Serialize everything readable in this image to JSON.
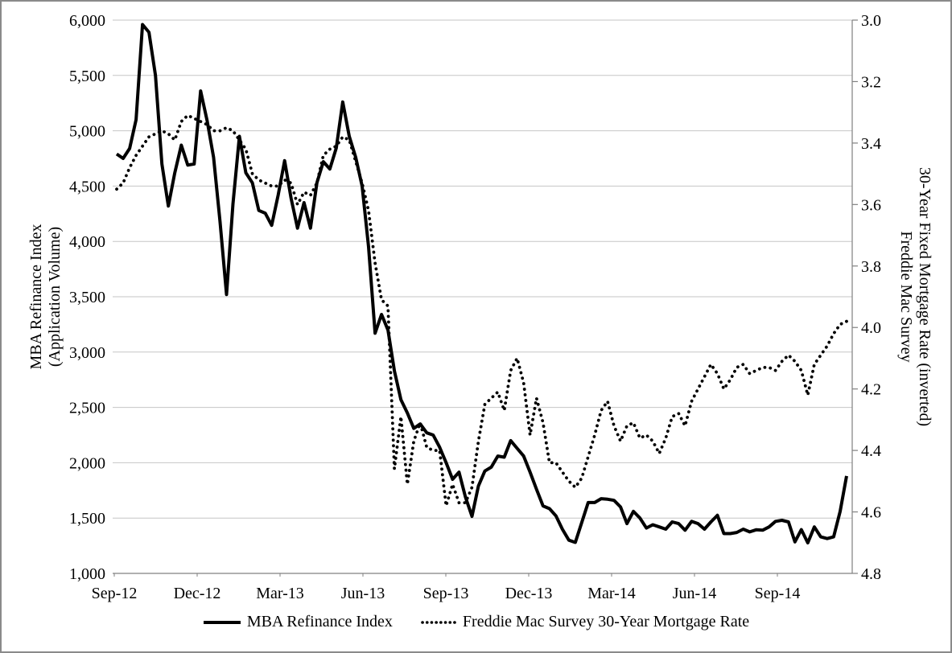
{
  "chart_data": {
    "type": "line",
    "title": "",
    "left_axis": {
      "title_lines": [
        "MBA Refinance Index",
        "(Application Volume)"
      ],
      "tick_labels": [
        "6,000",
        "5,500",
        "5,000",
        "4,500",
        "4,000",
        "3,500",
        "3,000",
        "2,500",
        "2,000",
        "1,500",
        "1,000"
      ],
      "min": 1000,
      "max": 6000,
      "step": 500
    },
    "right_axis": {
      "title_lines": [
        "Freddie Mac Survey",
        "30-Year Fixed Mortgage Rate (inverted)"
      ],
      "tick_labels": [
        "3.0",
        "3.2",
        "3.4",
        "3.6",
        "3.8",
        "4.0",
        "4.2",
        "4.4",
        "4.6",
        "4.8"
      ],
      "min": 3.0,
      "max": 4.8,
      "step": 0.2,
      "inverted": true
    },
    "x_axis": {
      "tick_labels": [
        "Sep-12",
        "Dec-12",
        "Mar-13",
        "Jun-13",
        "Sep-13",
        "Dec-13",
        "Mar-14",
        "Jun-14",
        "Sep-14"
      ],
      "unit": "weekly observations"
    },
    "grid": true,
    "legend_position": "bottom",
    "colors": {
      "series": "#000000",
      "gridline": "#c6c6c6",
      "axisline": "#808080",
      "text": "#000000"
    },
    "series": [
      {
        "name": "MBA Refinance Index",
        "axis": "left",
        "style": "solid",
        "values": [
          4790,
          4750,
          4840,
          5100,
          5960,
          5890,
          5500,
          4700,
          4320,
          4620,
          4870,
          4690,
          4700,
          5360,
          5090,
          4760,
          4180,
          3520,
          4340,
          4950,
          4620,
          4530,
          4280,
          4255,
          4145,
          4420,
          4730,
          4390,
          4120,
          4350,
          4120,
          4530,
          4720,
          4655,
          4845,
          5260,
          4950,
          4760,
          4500,
          3950,
          3170,
          3340,
          3200,
          2830,
          2570,
          2450,
          2310,
          2350,
          2270,
          2250,
          2140,
          2000,
          1850,
          1915,
          1690,
          1515,
          1790,
          1925,
          1960,
          2060,
          2050,
          2200,
          2130,
          2060,
          1915,
          1760,
          1610,
          1585,
          1520,
          1400,
          1300,
          1280,
          1460,
          1640,
          1640,
          1675,
          1670,
          1660,
          1600,
          1450,
          1560,
          1500,
          1410,
          1440,
          1420,
          1400,
          1465,
          1450,
          1390,
          1470,
          1450,
          1400,
          1465,
          1525,
          1360,
          1360,
          1370,
          1400,
          1375,
          1394,
          1390,
          1420,
          1470,
          1480,
          1465,
          1285,
          1395,
          1276,
          1420,
          1330,
          1315,
          1330,
          1560,
          1880
        ]
      },
      {
        "name": "Freddie Mac Survey 30-Year Mortgage Rate",
        "axis": "right",
        "style": "dotted",
        "values": [
          3.55,
          3.53,
          3.48,
          3.44,
          3.41,
          3.38,
          3.37,
          3.36,
          3.37,
          3.39,
          3.33,
          3.31,
          3.32,
          3.33,
          3.34,
          3.36,
          3.36,
          3.35,
          3.36,
          3.39,
          3.42,
          3.5,
          3.52,
          3.53,
          3.54,
          3.54,
          3.52,
          3.53,
          3.6,
          3.56,
          3.57,
          3.53,
          3.44,
          3.42,
          3.41,
          3.38,
          3.39,
          3.46,
          3.53,
          3.62,
          3.79,
          3.91,
          3.93,
          4.46,
          4.29,
          4.51,
          4.37,
          4.31,
          4.39,
          4.4,
          4.4,
          4.58,
          4.51,
          4.57,
          4.57,
          4.52,
          4.37,
          4.25,
          4.23,
          4.21,
          4.27,
          4.14,
          4.1,
          4.18,
          4.35,
          4.23,
          4.31,
          4.44,
          4.44,
          4.47,
          4.5,
          4.52,
          4.49,
          4.42,
          4.35,
          4.27,
          4.24,
          4.32,
          4.37,
          4.32,
          4.31,
          4.36,
          4.35,
          4.37,
          4.41,
          4.36,
          4.29,
          4.28,
          4.32,
          4.24,
          4.2,
          4.16,
          4.12,
          4.15,
          4.2,
          4.17,
          4.13,
          4.12,
          4.15,
          4.14,
          4.13,
          4.13,
          4.14,
          4.11,
          4.09,
          4.11,
          4.14,
          4.22,
          4.12,
          4.09,
          4.06,
          4.02,
          3.99,
          3.98
        ]
      }
    ],
    "legend": [
      {
        "label": "MBA Refinance Index",
        "style": "solid"
      },
      {
        "label": "Freddie Mac Survey 30-Year Mortgage Rate",
        "style": "dotted"
      }
    ]
  }
}
